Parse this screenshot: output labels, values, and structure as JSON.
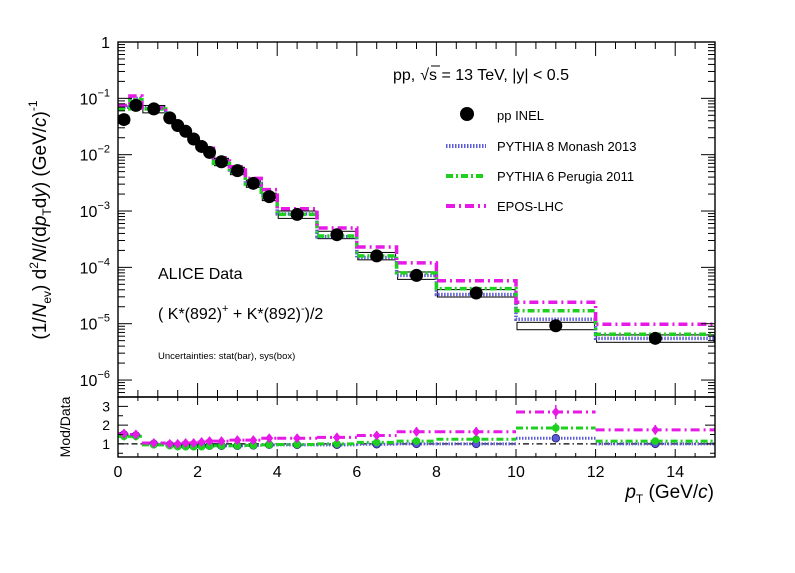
{
  "chart_data": [
    {
      "type": "scatter",
      "ylabel_parts": {
        "a": "(1/",
        "b": "N",
        "c": "ev",
        "d": ") d",
        "e": "2",
        "f": "N",
        "g": "/(d",
        "h": "p",
        "i": "T",
        "j": "d",
        "k": "y",
        "l": ") (GeV/",
        "m": "c",
        "n": ")",
        "o": "-1"
      },
      "x_range": [
        0,
        15
      ],
      "y_log": true,
      "y_range": [
        5e-07,
        1
      ],
      "y_ticks": [
        {
          "value": 1,
          "base": "1",
          "exp": ""
        },
        {
          "value": 0.1,
          "base": "10",
          "exp": "−1"
        },
        {
          "value": 0.01,
          "base": "10",
          "exp": "−2"
        },
        {
          "value": 0.001,
          "base": "10",
          "exp": "−3"
        },
        {
          "value": 0.0001,
          "base": "10",
          "exp": "−4"
        },
        {
          "value": 1e-05,
          "base": "10",
          "exp": "−5"
        },
        {
          "value": 1e-06,
          "base": "10",
          "exp": "−6"
        }
      ],
      "annotations": {
        "system": "pp,",
        "sqrt_symbol": "√",
        "energy": "s = 13 TeV, |y| < 0.5",
        "experiment": "ALICE Data",
        "particle": {
          "p1": "( K*(892)",
          "s1": "+",
          "p2": " + K*(892)",
          "s2": "-",
          "p3": ")/2"
        },
        "uncertainties": "Uncertainties: stat(bar), sys(box)"
      },
      "legend": {
        "placement": "top-right",
        "entries": [
          "pp INEL",
          "PYTHIA 8 Monash 2013",
          "PYTHIA 6 Perugia 2011",
          "EPOS-LHC"
        ]
      },
      "colors": {
        "data": "#000000",
        "pythia8": "#5b5bd6",
        "pythia6": "#1fd11f",
        "epos": "#e619e6"
      },
      "bins": [
        [
          0,
          0.3
        ],
        [
          0.3,
          0.6
        ],
        [
          0.6,
          1.2
        ],
        [
          1.2,
          1.4
        ],
        [
          1.4,
          1.6
        ],
        [
          1.6,
          1.8
        ],
        [
          1.8,
          2.0
        ],
        [
          2.0,
          2.2
        ],
        [
          2.2,
          2.4
        ],
        [
          2.4,
          2.8
        ],
        [
          2.8,
          3.2
        ],
        [
          3.2,
          3.6
        ],
        [
          3.6,
          4.0
        ],
        [
          4.0,
          5.0
        ],
        [
          5.0,
          6.0
        ],
        [
          6.0,
          7.0
        ],
        [
          7.0,
          8.0
        ],
        [
          8.0,
          10.0
        ],
        [
          10.0,
          12.0
        ],
        [
          12.0,
          15.0
        ]
      ],
      "data_points": {
        "x": [
          0.15,
          0.45,
          0.9,
          1.3,
          1.5,
          1.7,
          1.9,
          2.1,
          2.3,
          2.6,
          3.0,
          3.4,
          3.8,
          4.5,
          5.5,
          6.5,
          7.5,
          9.0,
          11.0,
          13.5
        ],
        "y": [
          0.042,
          0.075,
          0.065,
          0.045,
          0.033,
          0.026,
          0.019,
          0.014,
          0.011,
          0.0075,
          0.0052,
          0.0031,
          0.0018,
          0.00087,
          0.00038,
          0.00016,
          7.2e-05,
          3.5e-05,
          9.2e-06,
          5.5e-06
        ],
        "sys_rel": 0.15,
        "stat_rel": 0.06
      },
      "series": [
        {
          "name": "PYTHIA 8 Monash 2013",
          "values": [
            0.07,
            0.1,
            0.068,
            0.048,
            0.035,
            0.027,
            0.019,
            0.014,
            0.011,
            0.0072,
            0.0049,
            0.0031,
            0.0019,
            0.00089,
            0.00035,
            0.00015,
            7.2e-05,
            3.3e-05,
            1.2e-05,
            5.5e-06
          ]
        },
        {
          "name": "PYTHIA 6 Perugia 2011",
          "values": [
            0.065,
            0.095,
            0.065,
            0.045,
            0.032,
            0.025,
            0.018,
            0.013,
            0.0105,
            0.007,
            0.0048,
            0.003,
            0.0018,
            0.00087,
            0.00036,
            0.00016,
            8e-05,
            4.2e-05,
            1.7e-05,
            6.5e-06
          ]
        },
        {
          "name": "EPOS-LHC",
          "values": [
            0.075,
            0.11,
            0.068,
            0.046,
            0.034,
            0.027,
            0.02,
            0.016,
            0.013,
            0.0088,
            0.0061,
            0.0038,
            0.0024,
            0.0011,
            0.0005,
            0.00023,
            0.00012,
            5.8e-05,
            2.4e-05,
            9.8e-06
          ]
        }
      ]
    },
    {
      "type": "scatter",
      "ylabel": "Mod/Data",
      "xlabel_parts": {
        "a": "p",
        "b": "T",
        "c": " (GeV/",
        "d": "c",
        "e": ")"
      },
      "x_range": [
        0,
        15
      ],
      "y_range": [
        0.3,
        3.5
      ],
      "y_ticks": [
        1,
        2,
        3
      ],
      "x_ticks": [
        0,
        2,
        4,
        6,
        8,
        10,
        12,
        14
      ],
      "reference_line": 1,
      "ratio_series": [
        {
          "name": "PYTHIA 8 Monash 2013",
          "values": [
            1.5,
            1.45,
            1.0,
            0.95,
            0.9,
            0.88,
            0.88,
            0.9,
            0.9,
            0.9,
            0.9,
            0.92,
            0.95,
            0.95,
            0.95,
            0.98,
            1.0,
            1.0,
            1.3,
            1.0
          ]
        },
        {
          "name": "PYTHIA 6 Perugia 2011",
          "values": [
            1.4,
            1.4,
            0.95,
            0.9,
            0.85,
            0.85,
            0.85,
            0.85,
            0.88,
            0.9,
            0.9,
            0.92,
            0.95,
            0.97,
            1.0,
            1.08,
            1.15,
            1.25,
            1.85,
            1.15
          ]
        },
        {
          "name": "EPOS-LHC",
          "values": [
            1.55,
            1.5,
            1.05,
            1.0,
            1.0,
            1.05,
            1.05,
            1.1,
            1.15,
            1.15,
            1.2,
            1.2,
            1.3,
            1.3,
            1.35,
            1.45,
            1.65,
            1.65,
            2.7,
            1.75
          ]
        }
      ]
    }
  ]
}
